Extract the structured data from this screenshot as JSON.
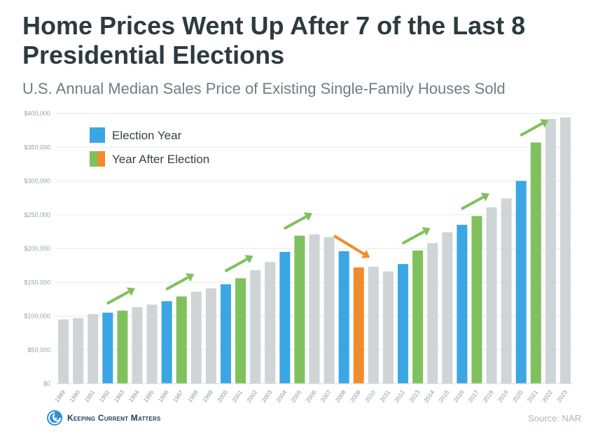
{
  "header": {
    "title": "Home Prices Went Up After 7 of the Last 8 Presidential Elections",
    "subtitle": "U.S. Annual Median Sales Price of Existing Single-Family Houses Sold"
  },
  "footer": {
    "logo_text": "Keeping Current Matters",
    "source": "Source: NAR"
  },
  "colors": {
    "election": "#3aa6e4",
    "after_up": "#7ec15d",
    "after_down": "#f28b2d",
    "other": "#cfd4d7",
    "arrow_up": "#7ec15d",
    "arrow_down": "#f28b2d"
  },
  "chart_data": {
    "type": "bar",
    "categories": [
      "1989",
      "1990",
      "1991",
      "1992",
      "1993",
      "1994",
      "1995",
      "1996",
      "1997",
      "1998",
      "1999",
      "2000",
      "2001",
      "2002",
      "2003",
      "2004",
      "2005",
      "2006",
      "2007",
      "2008",
      "2009",
      "2010",
      "2011",
      "2012",
      "2013",
      "2014",
      "2015",
      "2016",
      "2017",
      "2018",
      "2019",
      "2020",
      "2021",
      "2022",
      "2023"
    ],
    "values": [
      95000,
      97000,
      103000,
      105000,
      108000,
      113000,
      117000,
      122000,
      129000,
      136000,
      141000,
      147000,
      156000,
      168000,
      180000,
      195000,
      219000,
      221000,
      217000,
      196000,
      172000,
      173000,
      166000,
      177000,
      197000,
      208000,
      224000,
      235000,
      248000,
      261000,
      274000,
      300000,
      357000,
      392000,
      394000
    ],
    "bar_groups": [
      "other",
      "other",
      "other",
      "election",
      "after_up",
      "other",
      "other",
      "election",
      "after_up",
      "other",
      "other",
      "election",
      "after_up",
      "other",
      "other",
      "election",
      "after_up",
      "other",
      "other",
      "election",
      "after_down",
      "other",
      "other",
      "election",
      "after_up",
      "other",
      "other",
      "election",
      "after_up",
      "other",
      "other",
      "election",
      "after_up",
      "other",
      "other"
    ],
    "legend": [
      {
        "label": "Election Year",
        "swatch": [
          "election"
        ]
      },
      {
        "label": "Year After Election",
        "swatch": [
          "after_up",
          "after_down"
        ]
      }
    ],
    "legend_placement": "top-left",
    "arrows": [
      {
        "from": "1992",
        "to": "1993",
        "direction": "up"
      },
      {
        "from": "1996",
        "to": "1997",
        "direction": "up"
      },
      {
        "from": "2000",
        "to": "2001",
        "direction": "up"
      },
      {
        "from": "2004",
        "to": "2005",
        "direction": "up"
      },
      {
        "from": "2008",
        "to": "2009",
        "direction": "down"
      },
      {
        "from": "2012",
        "to": "2013",
        "direction": "up"
      },
      {
        "from": "2016",
        "to": "2017",
        "direction": "up"
      },
      {
        "from": "2020",
        "to": "2021",
        "direction": "up"
      }
    ],
    "y_ticks": [
      0,
      50000,
      100000,
      150000,
      200000,
      250000,
      300000,
      350000,
      400000
    ],
    "y_tick_labels": [
      "$0",
      "$50,000",
      "$100,000",
      "$150,000",
      "$200,000",
      "$250,000",
      "$300,000",
      "$350,000",
      "$400,000"
    ],
    "ylim": [
      0,
      400000
    ],
    "grid": true
  }
}
